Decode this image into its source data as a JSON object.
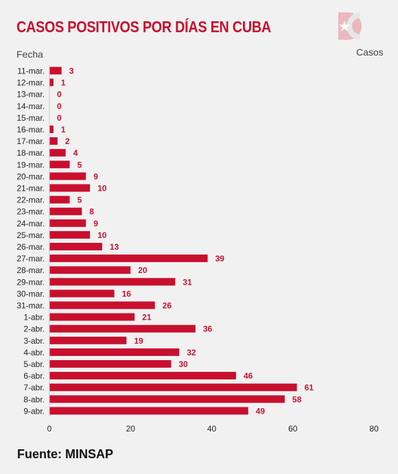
{
  "title": "CASOS POSITIVOS POR DÍAS EN CUBA",
  "logo_text": "DC",
  "source": "Fuente: MINSAP",
  "colors": {
    "bar": "#c8102e",
    "title": "#c8102e",
    "label": "#c8102e",
    "background": "#f1f1f1"
  },
  "chart_data": {
    "type": "bar",
    "orientation": "horizontal",
    "title": "CASOS POSITIVOS POR DÍAS EN CUBA",
    "ylabel": "Fecha",
    "xlabel": "Casos",
    "xlim": [
      0,
      80
    ],
    "xticks": [
      0,
      20,
      40,
      60,
      80
    ],
    "grid": false,
    "categories": [
      "11-mar.",
      "12-mar.",
      "13-mar.",
      "14-mar.",
      "15-mar.",
      "16-mar.",
      "17-mar.",
      "18-mar.",
      "19-mar.",
      "20-mar.",
      "21-mar.",
      "22-mar.",
      "23-mar.",
      "24-mar.",
      "25-mar.",
      "26-mar.",
      "27-mar.",
      "28-mar.",
      "29-mar.",
      "30-mar.",
      "31-mar.",
      "1-abr.",
      "2-abr.",
      "3-abr.",
      "4-abr.",
      "5-abr.",
      "6-abr.",
      "7-abr.",
      "8-abr.",
      "9-abr."
    ],
    "values": [
      3,
      1,
      0,
      0,
      0,
      1,
      2,
      4,
      5,
      9,
      10,
      5,
      8,
      9,
      10,
      13,
      39,
      20,
      31,
      16,
      26,
      21,
      36,
      19,
      32,
      30,
      46,
      61,
      58,
      49
    ]
  }
}
